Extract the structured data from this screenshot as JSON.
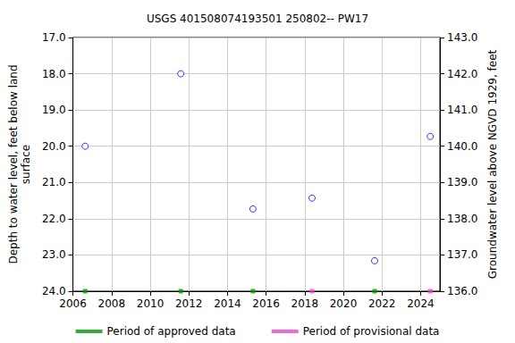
{
  "chart_data": {
    "type": "scatter",
    "title": "USGS 401508074193501 250802-- PW17",
    "x_label": "",
    "y_label": "Depth to water level, feet below land\nsurface",
    "y2_label": "Groundwater level above NGVD 1929, feet",
    "xlim": [
      2006,
      2025
    ],
    "xticks": [
      2006,
      2008,
      2010,
      2012,
      2014,
      2016,
      2018,
      2020,
      2022,
      2024
    ],
    "ylim": [
      17,
      24
    ],
    "yticks": [
      {
        "value": 17,
        "label": "17.0"
      },
      {
        "value": 18,
        "label": "18.0"
      },
      {
        "value": 19,
        "label": "19.0"
      },
      {
        "value": 20,
        "label": "20.0"
      },
      {
        "value": 21,
        "label": "21.0"
      },
      {
        "value": 22,
        "label": "22.0"
      },
      {
        "value": 23,
        "label": "23.0"
      },
      {
        "value": 24,
        "label": "24.0"
      }
    ],
    "y2lim": [
      136,
      143
    ],
    "y2ticks": [
      {
        "value": 136,
        "label": "136.0"
      },
      {
        "value": 137,
        "label": "137.0"
      },
      {
        "value": 138,
        "label": "138.0"
      },
      {
        "value": 139,
        "label": "139.0"
      },
      {
        "value": 140,
        "label": "140.0"
      },
      {
        "value": 141,
        "label": "141.0"
      },
      {
        "value": 142,
        "label": "142.0"
      },
      {
        "value": 143,
        "label": "143.0"
      }
    ],
    "grid": true,
    "legend": "bottom",
    "series": [
      {
        "color": "#0000ff",
        "marker": "circle-open",
        "x": [
          2006.63,
          2011.58,
          2015.32,
          2018.38,
          2021.62,
          2024.5
        ],
        "values": [
          20.0,
          18.0,
          21.73,
          21.43,
          23.16,
          19.73
        ]
      },
      {
        "name": "Period of approved data",
        "color": "#009900",
        "marker": "square",
        "x": [
          2006.63,
          2011.58,
          2015.32,
          2021.62
        ],
        "values": [
          24,
          24,
          24,
          24
        ]
      },
      {
        "name": "Period of provisional data",
        "color": "#ee44cc",
        "marker": "square",
        "x": [
          2018.38,
          2024.5
        ],
        "values": [
          24,
          24
        ]
      }
    ]
  }
}
